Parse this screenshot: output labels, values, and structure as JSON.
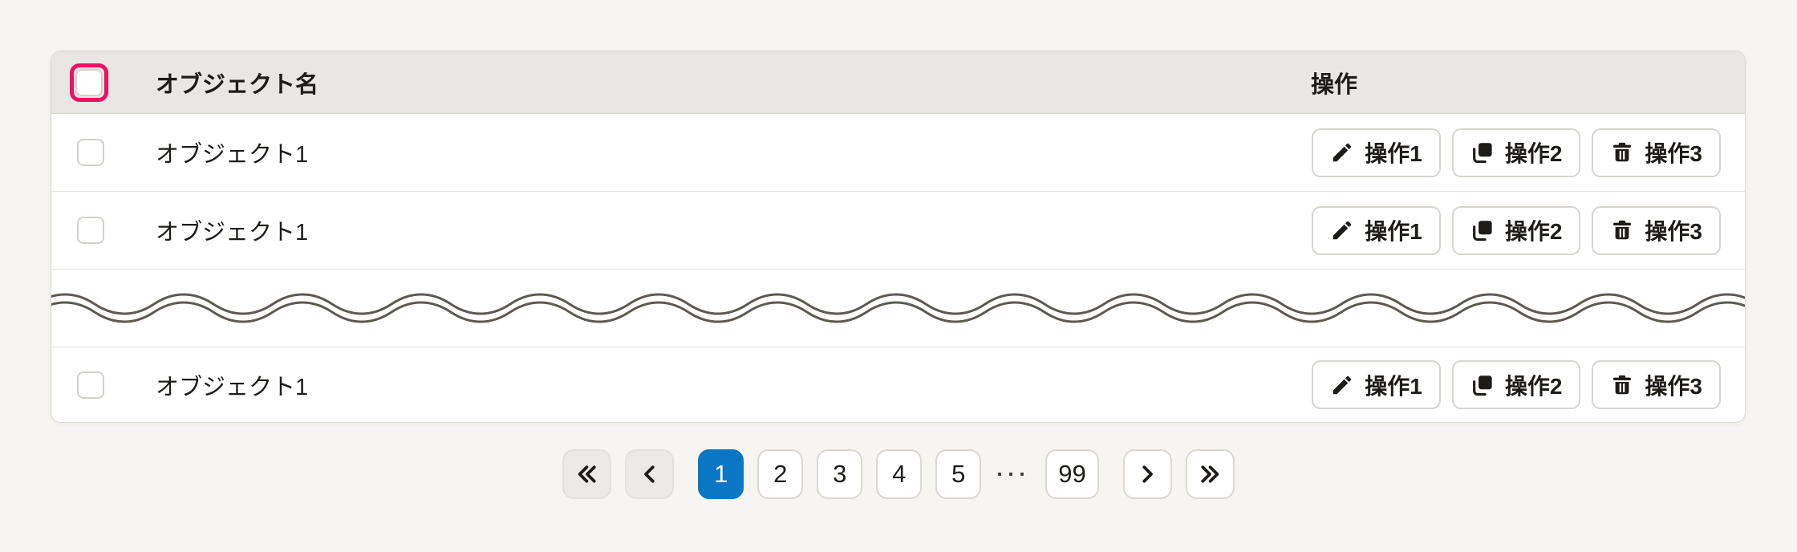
{
  "colors": {
    "page_bg": "#f7f5f2",
    "header_bg": "#e9e7e3",
    "focus_ring_pink": "#ef0f63",
    "active_page_blue": "#0b76c4",
    "text": "#1e1c19",
    "wave_stroke": "#5d5951"
  },
  "table": {
    "header": {
      "name_column": "オブジェクト名",
      "actions_column": "操作",
      "select_all_state": "unchecked",
      "select_all_focused": true
    },
    "rows": [
      {
        "name": "オブジェクト1",
        "selected": false
      },
      {
        "name": "オブジェクト1",
        "selected": false
      },
      {
        "name": "オブジェクト1",
        "selected": false
      }
    ],
    "actions": [
      {
        "label": "操作1",
        "icon": "pencil-icon"
      },
      {
        "label": "操作2",
        "icon": "copy-icon"
      },
      {
        "label": "操作3",
        "icon": "trash-icon"
      }
    ],
    "truncation_divider": "wavy-line"
  },
  "pagination": {
    "current_page": "1",
    "pages": [
      "1",
      "2",
      "3",
      "4",
      "5"
    ],
    "ellipsis": "···",
    "last_page": "99",
    "first_button": {
      "icon": "chevrons-left",
      "disabled": true
    },
    "prev_button": {
      "icon": "chevron-left",
      "disabled": true
    },
    "next_button": {
      "icon": "chevron-right",
      "disabled": false
    },
    "last_button": {
      "icon": "chevrons-right",
      "disabled": false
    }
  }
}
